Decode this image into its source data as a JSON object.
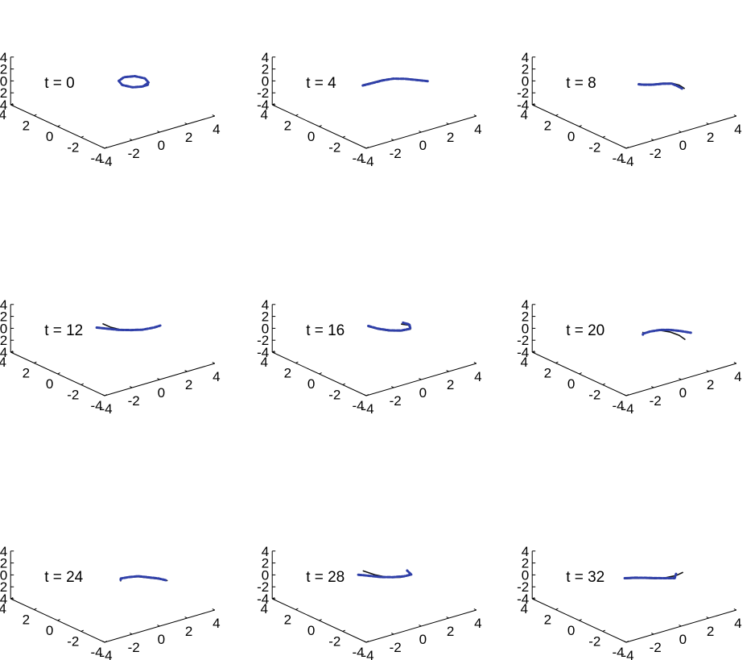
{
  "chart_data": {
    "type": "line",
    "layout": "3x3 grid of 3D line plots",
    "grid": false,
    "legend": "none",
    "colors": {
      "solid": "#111111",
      "dashed": "#2f3fa8",
      "axis": "#000000"
    },
    "axes": {
      "x_ticks": [
        "-4",
        "-2",
        "0",
        "2",
        "4"
      ],
      "y_ticks": [
        "4",
        "2",
        "0",
        "-2",
        "-4"
      ],
      "z_ticks": [
        "4",
        "2",
        "0",
        "-2",
        "-4"
      ],
      "xlim": [
        -4,
        4
      ],
      "ylim": [
        -4,
        4
      ],
      "zlim": [
        -4,
        4
      ]
    },
    "panels": [
      {
        "title": "t = 0",
        "series": [
          {
            "style": "solid",
            "points": [
              [
                0.0,
                -1.5,
                0
              ],
              [
                1.06,
                -1.06,
                0
              ],
              [
                1.5,
                0,
                0
              ],
              [
                1.06,
                1.06,
                0
              ],
              [
                0,
                1.5,
                0
              ],
              [
                -1.06,
                1.06,
                0
              ],
              [
                -1.5,
                0,
                0
              ],
              [
                -1.06,
                -1.06,
                0
              ],
              [
                -0.2,
                -1.5,
                0
              ],
              [
                0.6,
                -1.6,
                0.1
              ]
            ]
          },
          {
            "style": "dashed",
            "points": [
              [
                0.0,
                -1.5,
                0
              ],
              [
                1.06,
                -1.06,
                0
              ],
              [
                1.5,
                0,
                0
              ],
              [
                1.06,
                1.06,
                0
              ],
              [
                0,
                1.5,
                0
              ],
              [
                -1.06,
                1.06,
                0
              ],
              [
                -1.5,
                0,
                0
              ],
              [
                -1.06,
                -1.06,
                0
              ],
              [
                -0.2,
                -1.5,
                0
              ],
              [
                0.6,
                -1.6,
                0.1
              ]
            ]
          }
        ]
      },
      {
        "title": "t = 4",
        "series": [
          {
            "style": "solid",
            "points": [
              [
                -3.0,
                1.5,
                -0.2
              ],
              [
                -2.0,
                1.2,
                0.0
              ],
              [
                -1.0,
                0.8,
                0.3
              ],
              [
                0.0,
                0.3,
                0.4
              ],
              [
                1.0,
                -0.3,
                0.3
              ],
              [
                2.0,
                -0.9,
                0.0
              ],
              [
                3.0,
                -1.5,
                -0.3
              ]
            ]
          },
          {
            "style": "dashed",
            "points": [
              [
                -3.0,
                1.5,
                -0.3
              ],
              [
                -2.0,
                1.2,
                -0.1
              ],
              [
                -1.0,
                0.8,
                0.2
              ],
              [
                0.0,
                0.3,
                0.4
              ],
              [
                1.0,
                -0.3,
                0.3
              ],
              [
                2.0,
                -0.9,
                0.0
              ],
              [
                3.0,
                -1.5,
                -0.3
              ]
            ]
          }
        ]
      },
      {
        "title": "t = 8",
        "series": [
          {
            "style": "solid",
            "points": [
              [
                -1.5,
                0.8,
                -0.2
              ],
              [
                -1.6,
                0,
                0.2
              ],
              [
                -1.0,
                -0.8,
                0.4
              ],
              [
                0.0,
                -1.2,
                0.4
              ],
              [
                1.0,
                -1.4,
                0.1
              ],
              [
                1.8,
                -1.6,
                -0.5
              ],
              [
                2.3,
                -1.8,
                -1.2
              ]
            ]
          },
          {
            "style": "dashed",
            "points": [
              [
                -1.5,
                0.8,
                -0.3
              ],
              [
                -1.6,
                0,
                0.1
              ],
              [
                -1.0,
                -0.8,
                0.3
              ],
              [
                0.0,
                -1.2,
                0.3
              ],
              [
                1.0,
                -1.4,
                0.0
              ],
              [
                1.6,
                -1.6,
                -0.6
              ],
              [
                2.0,
                -1.8,
                -1.1
              ]
            ]
          }
        ]
      },
      {
        "title": "t = 12",
        "series": [
          {
            "style": "solid",
            "points": [
              [
                -2.5,
                1.8,
                1.0
              ],
              [
                -1.8,
                1.4,
                0.3
              ],
              [
                -1.0,
                1.0,
                -0.2
              ],
              [
                0.0,
                0.4,
                -0.4
              ],
              [
                1.0,
                -0.2,
                -0.4
              ],
              [
                2.0,
                -0.8,
                -0.1
              ],
              [
                2.5,
                -1.2,
                0.3
              ]
            ]
          },
          {
            "style": "dashed",
            "points": [
              [
                -3.0,
                2.2,
                0.3
              ],
              [
                -2.0,
                1.6,
                0.0
              ],
              [
                -1.0,
                1.0,
                -0.3
              ],
              [
                0.0,
                0.4,
                -0.4
              ],
              [
                1.0,
                -0.2,
                -0.4
              ],
              [
                2.0,
                -0.8,
                -0.1
              ],
              [
                2.5,
                -1.2,
                0.3
              ]
            ]
          }
        ]
      },
      {
        "title": "t = 16",
        "series": [
          {
            "style": "solid",
            "points": [
              [
                -2.2,
                1.6,
                0.5
              ],
              [
                -1.4,
                1.0,
                0.0
              ],
              [
                -0.4,
                0.4,
                -0.4
              ],
              [
                0.6,
                -0.2,
                -0.5
              ],
              [
                1.5,
                -0.6,
                -0.3
              ],
              [
                1.6,
                -0.2,
                0.2
              ],
              [
                1.0,
                0.2,
                0.4
              ]
            ]
          },
          {
            "style": "dashed",
            "points": [
              [
                -2.2,
                1.6,
                0.6
              ],
              [
                -1.4,
                1.0,
                0.1
              ],
              [
                -0.4,
                0.4,
                -0.3
              ],
              [
                0.6,
                -0.2,
                -0.4
              ],
              [
                1.5,
                -0.6,
                -0.2
              ],
              [
                1.7,
                -0.2,
                0.3
              ],
              [
                1.2,
                0.2,
                0.6
              ]
            ]
          }
        ]
      },
      {
        "title": "t = 20",
        "series": [
          {
            "style": "solid",
            "points": [
              [
                -1.2,
                0.5,
                -0.4
              ],
              [
                -1.6,
                0,
                -0.1
              ],
              [
                -1.0,
                -0.4,
                0.2
              ],
              [
                0.0,
                -0.8,
                0.2
              ],
              [
                1.0,
                -1.2,
                -0.3
              ],
              [
                1.8,
                -1.6,
                -1.0
              ],
              [
                2.3,
                -1.9,
                -1.8
              ]
            ]
          },
          {
            "style": "dashed",
            "points": [
              [
                -1.2,
                0.5,
                -0.8
              ],
              [
                -1.6,
                0,
                -0.2
              ],
              [
                -1.0,
                -0.4,
                0.2
              ],
              [
                0.0,
                -0.8,
                0.3
              ],
              [
                1.0,
                -1.2,
                0.1
              ],
              [
                2.0,
                -1.6,
                -0.3
              ],
              [
                3.0,
                -2.0,
                -0.8
              ]
            ]
          }
        ]
      },
      {
        "title": "t = 24",
        "series": [
          {
            "style": "solid",
            "points": [
              [
                -1.2,
                0.6,
                -0.8
              ],
              [
                -1.6,
                0.1,
                0.0
              ],
              [
                -1.0,
                -0.3,
                0.3
              ],
              [
                0.0,
                -0.7,
                0.2
              ],
              [
                1.0,
                -1.1,
                -0.2
              ],
              [
                2.0,
                -1.5,
                -0.6
              ],
              [
                2.8,
                -1.9,
                -1.0
              ]
            ]
          },
          {
            "style": "dashed",
            "points": [
              [
                -1.2,
                0.6,
                -0.6
              ],
              [
                -1.6,
                0.1,
                0.1
              ],
              [
                -1.0,
                -0.3,
                0.3
              ],
              [
                0.0,
                -0.7,
                0.3
              ],
              [
                1.0,
                -1.1,
                -0.1
              ],
              [
                2.0,
                -1.5,
                -0.5
              ],
              [
                2.8,
                -1.9,
                -1.0
              ]
            ]
          }
        ]
      },
      {
        "title": "t = 28",
        "series": [
          {
            "style": "solid",
            "points": [
              [
                -2.5,
                2.0,
                0.8
              ],
              [
                -1.5,
                1.4,
                0.0
              ],
              [
                -0.4,
                0.6,
                -0.5
              ],
              [
                0.6,
                -0.1,
                -0.5
              ],
              [
                1.4,
                -0.6,
                -0.2
              ],
              [
                1.5,
                -0.4,
                0.3
              ]
            ]
          },
          {
            "style": "dashed",
            "points": [
              [
                -3.0,
                2.2,
                0.2
              ],
              [
                -2.0,
                1.6,
                -0.1
              ],
              [
                -1.0,
                1.0,
                -0.4
              ],
              [
                0.0,
                0.4,
                -0.5
              ],
              [
                1.0,
                -0.2,
                -0.4
              ],
              [
                1.6,
                -0.6,
                -0.1
              ],
              [
                1.4,
                -0.2,
                0.5
              ]
            ]
          }
        ]
      },
      {
        "title": "t = 32",
        "series": [
          {
            "style": "solid",
            "points": [
              [
                -3.0,
                1.2,
                0.0
              ],
              [
                -2.0,
                0.8,
                -0.1
              ],
              [
                -1.0,
                0.4,
                -0.3
              ],
              [
                0.0,
                -0.1,
                -0.5
              ],
              [
                1.0,
                -0.5,
                -0.5
              ],
              [
                2.0,
                -0.9,
                -0.3
              ],
              [
                2.6,
                -1.2,
                0.2
              ]
            ]
          },
          {
            "style": "dashed",
            "points": [
              [
                -3.0,
                1.2,
                0.1
              ],
              [
                -2.0,
                0.8,
                0.0
              ],
              [
                -1.0,
                0.4,
                -0.2
              ],
              [
                0.0,
                -0.1,
                -0.4
              ],
              [
                1.0,
                -0.5,
                -0.6
              ],
              [
                1.8,
                -0.9,
                -0.7
              ],
              [
                1.9,
                -1.0,
                0.1
              ]
            ]
          }
        ]
      }
    ]
  }
}
